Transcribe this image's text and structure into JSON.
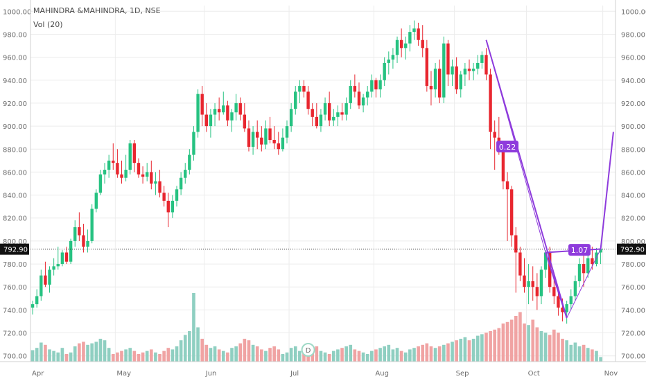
{
  "legend": {
    "title": "MAHINDRA &MAHINDRA, 1D, NSE",
    "volume_label": "Vol (20)"
  },
  "colors": {
    "up": "#26c281",
    "up_dark": "#1ea86c",
    "down": "#e8262f",
    "volume_up": "#8fcfc1",
    "volume_down": "#f0a3a3",
    "pattern": "#8e3bdc",
    "price_tag_bg": "#111111",
    "grid_line": "#ececec",
    "axis_text": "#6b6b6b"
  },
  "chart_data": {
    "type": "candlestick",
    "title": "MAHINDRA &MAHINDRA, 1D, NSE",
    "indicator": "Vol (20)",
    "y_axis": {
      "range": [
        695,
        1005
      ],
      "ticks": [
        "700.00",
        "720.00",
        "740.00",
        "760.00",
        "780.00",
        "800.00",
        "820.00",
        "840.00",
        "860.00",
        "880.00",
        "900.00",
        "920.00",
        "940.00",
        "960.00",
        "980.00",
        "1000.00"
      ],
      "visible_left": true,
      "visible_right": true
    },
    "x_axis": {
      "labels": [
        {
          "label": "Apr",
          "day": 0
        },
        {
          "label": "May",
          "day": 20
        },
        {
          "label": "Jun",
          "day": 41
        },
        {
          "label": "Jul",
          "day": 61
        },
        {
          "label": "Aug",
          "day": 81
        },
        {
          "label": "Sep",
          "day": 100
        },
        {
          "label": "Oct",
          "day": 117
        },
        {
          "label": "Nov",
          "day": 135
        }
      ],
      "total_days": 138
    },
    "last_price": {
      "value": 792.9,
      "label": "792.90"
    },
    "candles": [
      [
        0,
        742,
        748,
        736,
        745
      ],
      [
        1,
        745,
        758,
        742,
        752
      ],
      [
        2,
        752,
        775,
        748,
        770
      ],
      [
        3,
        770,
        782,
        760,
        762
      ],
      [
        4,
        762,
        778,
        755,
        775
      ],
      [
        5,
        775,
        785,
        770,
        778
      ],
      [
        6,
        778,
        795,
        775,
        780
      ],
      [
        7,
        780,
        792,
        778,
        790
      ],
      [
        8,
        790,
        795,
        780,
        782
      ],
      [
        9,
        782,
        802,
        780,
        800
      ],
      [
        10,
        800,
        818,
        795,
        812
      ],
      [
        11,
        812,
        825,
        800,
        805
      ],
      [
        12,
        805,
        815,
        790,
        795
      ],
      [
        13,
        795,
        810,
        790,
        800
      ],
      [
        14,
        800,
        832,
        798,
        828
      ],
      [
        15,
        828,
        845,
        825,
        842
      ],
      [
        16,
        842,
        862,
        840,
        858
      ],
      [
        17,
        858,
        868,
        850,
        862
      ],
      [
        18,
        862,
        875,
        855,
        870
      ],
      [
        19,
        870,
        885,
        862,
        868
      ],
      [
        20,
        868,
        880,
        855,
        858
      ],
      [
        21,
        858,
        870,
        850,
        855
      ],
      [
        22,
        855,
        875,
        852,
        862
      ],
      [
        23,
        862,
        888,
        858,
        885
      ],
      [
        24,
        885,
        888,
        860,
        868
      ],
      [
        25,
        868,
        872,
        855,
        858
      ],
      [
        26,
        858,
        865,
        850,
        856
      ],
      [
        27,
        856,
        868,
        852,
        860
      ],
      [
        28,
        860,
        870,
        845,
        850
      ],
      [
        29,
        850,
        860,
        840,
        852
      ],
      [
        30,
        852,
        862,
        838,
        842
      ],
      [
        31,
        842,
        848,
        830,
        835
      ],
      [
        32,
        835,
        842,
        812,
        825
      ],
      [
        33,
        825,
        840,
        820,
        835
      ],
      [
        34,
        835,
        848,
        830,
        845
      ],
      [
        35,
        845,
        860,
        840,
        855
      ],
      [
        36,
        855,
        868,
        850,
        862
      ],
      [
        37,
        862,
        880,
        858,
        875
      ],
      [
        38,
        875,
        900,
        870,
        895
      ],
      [
        39,
        895,
        932,
        890,
        928
      ],
      [
        40,
        928,
        935,
        900,
        910
      ],
      [
        41,
        910,
        920,
        895,
        900
      ],
      [
        42,
        900,
        915,
        890,
        910
      ],
      [
        43,
        910,
        920,
        900,
        915
      ],
      [
        44,
        915,
        925,
        905,
        912
      ],
      [
        45,
        912,
        930,
        910,
        918
      ],
      [
        46,
        918,
        922,
        900,
        905
      ],
      [
        47,
        905,
        915,
        895,
        912
      ],
      [
        48,
        912,
        928,
        905,
        920
      ],
      [
        49,
        920,
        925,
        905,
        910
      ],
      [
        50,
        910,
        920,
        895,
        898
      ],
      [
        51,
        898,
        905,
        878,
        882
      ],
      [
        52,
        882,
        900,
        875,
        895
      ],
      [
        53,
        895,
        905,
        880,
        890
      ],
      [
        54,
        890,
        900,
        878,
        884
      ],
      [
        55,
        884,
        905,
        880,
        898
      ],
      [
        56,
        898,
        908,
        885,
        888
      ],
      [
        57,
        888,
        900,
        880,
        885
      ],
      [
        58,
        885,
        895,
        875,
        880
      ],
      [
        59,
        880,
        898,
        878,
        890
      ],
      [
        60,
        890,
        905,
        885,
        900
      ],
      [
        61,
        900,
        920,
        895,
        915
      ],
      [
        62,
        915,
        935,
        910,
        930
      ],
      [
        63,
        930,
        940,
        920,
        935
      ],
      [
        64,
        935,
        940,
        925,
        930
      ],
      [
        65,
        930,
        935,
        910,
        915
      ],
      [
        66,
        915,
        920,
        900,
        908
      ],
      [
        67,
        908,
        920,
        898,
        900
      ],
      [
        68,
        900,
        915,
        895,
        910
      ],
      [
        69,
        910,
        925,
        905,
        920
      ],
      [
        70,
        920,
        930,
        900,
        905
      ],
      [
        71,
        905,
        915,
        900,
        908
      ],
      [
        72,
        908,
        918,
        900,
        912
      ],
      [
        73,
        912,
        920,
        905,
        910
      ],
      [
        74,
        910,
        925,
        905,
        920
      ],
      [
        75,
        920,
        940,
        915,
        935
      ],
      [
        76,
        935,
        945,
        925,
        930
      ],
      [
        77,
        930,
        938,
        915,
        918
      ],
      [
        78,
        918,
        928,
        912,
        925
      ],
      [
        79,
        925,
        935,
        918,
        930
      ],
      [
        80,
        930,
        945,
        925,
        940
      ],
      [
        81,
        940,
        942,
        925,
        932
      ],
      [
        82,
        932,
        945,
        925,
        940
      ],
      [
        83,
        940,
        960,
        935,
        955
      ],
      [
        84,
        955,
        965,
        945,
        958
      ],
      [
        85,
        958,
        968,
        950,
        962
      ],
      [
        86,
        962,
        978,
        955,
        975
      ],
      [
        87,
        975,
        985,
        960,
        968
      ],
      [
        88,
        968,
        978,
        958,
        972
      ],
      [
        89,
        972,
        988,
        965,
        982
      ],
      [
        90,
        982,
        992,
        975,
        985
      ],
      [
        91,
        985,
        990,
        970,
        975
      ],
      [
        92,
        975,
        988,
        960,
        968
      ],
      [
        93,
        968,
        975,
        930,
        935
      ],
      [
        94,
        935,
        948,
        918,
        932
      ],
      [
        95,
        932,
        955,
        925,
        950
      ],
      [
        96,
        950,
        958,
        920,
        925
      ],
      [
        97,
        925,
        978,
        920,
        972
      ],
      [
        98,
        972,
        975,
        935,
        945
      ],
      [
        99,
        945,
        958,
        935,
        952
      ],
      [
        100,
        952,
        960,
        928,
        932
      ],
      [
        101,
        932,
        948,
        925,
        945
      ],
      [
        102,
        945,
        955,
        935,
        950
      ],
      [
        103,
        950,
        958,
        940,
        948
      ],
      [
        104,
        948,
        955,
        940,
        950
      ],
      [
        105,
        950,
        962,
        945,
        955
      ],
      [
        106,
        955,
        965,
        950,
        962
      ],
      [
        107,
        962,
        968,
        940,
        945
      ],
      [
        108,
        945,
        950,
        880,
        895
      ],
      [
        109,
        895,
        905,
        862,
        890
      ],
      [
        110,
        890,
        908,
        875,
        880
      ],
      [
        111,
        880,
        885,
        845,
        852
      ],
      [
        112,
        852,
        860,
        800,
        845
      ],
      [
        113,
        845,
        848,
        795,
        805
      ],
      [
        114,
        805,
        812,
        755,
        790
      ],
      [
        115,
        790,
        795,
        765,
        770
      ],
      [
        116,
        770,
        785,
        755,
        760
      ],
      [
        117,
        760,
        780,
        745,
        765
      ],
      [
        118,
        765,
        778,
        748,
        760
      ],
      [
        119,
        760,
        772,
        740,
        752
      ],
      [
        120,
        752,
        778,
        745,
        775
      ],
      [
        121,
        775,
        792,
        768,
        790
      ],
      [
        122,
        790,
        795,
        755,
        760
      ],
      [
        123,
        760,
        772,
        745,
        752
      ],
      [
        124,
        752,
        760,
        735,
        742
      ],
      [
        125,
        742,
        750,
        730,
        738
      ],
      [
        126,
        738,
        748,
        728,
        745
      ],
      [
        127,
        745,
        758,
        740,
        752
      ],
      [
        128,
        752,
        770,
        748,
        765
      ],
      [
        129,
        765,
        785,
        760,
        780
      ],
      [
        130,
        780,
        788,
        760,
        772
      ],
      [
        131,
        772,
        788,
        768,
        785
      ],
      [
        132,
        785,
        795,
        775,
        780
      ],
      [
        133,
        780,
        794,
        778,
        790
      ],
      [
        134,
        790,
        796,
        780,
        793
      ]
    ],
    "volume_max_relative": 1.0,
    "volumes": [
      0.15,
      0.18,
      0.25,
      0.22,
      0.16,
      0.14,
      0.12,
      0.18,
      0.1,
      0.12,
      0.2,
      0.24,
      0.26,
      0.22,
      0.24,
      0.26,
      0.3,
      0.28,
      0.18,
      0.1,
      0.12,
      0.14,
      0.16,
      0.18,
      0.14,
      0.1,
      0.12,
      0.14,
      0.16,
      0.12,
      0.1,
      0.14,
      0.18,
      0.16,
      0.2,
      0.28,
      0.35,
      0.4,
      0.9,
      0.45,
      0.3,
      0.22,
      0.18,
      0.2,
      0.16,
      0.14,
      0.12,
      0.18,
      0.2,
      0.24,
      0.3,
      0.28,
      0.22,
      0.2,
      0.16,
      0.14,
      0.18,
      0.2,
      0.16,
      0.1,
      0.12,
      0.18,
      0.2,
      0.14,
      0.12,
      0.16,
      0.18,
      0.2,
      0.14,
      0.12,
      0.1,
      0.14,
      0.16,
      0.18,
      0.2,
      0.22,
      0.16,
      0.14,
      0.12,
      0.1,
      0.14,
      0.16,
      0.18,
      0.2,
      0.22,
      0.16,
      0.18,
      0.14,
      0.12,
      0.16,
      0.18,
      0.2,
      0.22,
      0.24,
      0.2,
      0.18,
      0.2,
      0.22,
      0.24,
      0.26,
      0.28,
      0.3,
      0.32,
      0.28,
      0.3,
      0.34,
      0.36,
      0.38,
      0.4,
      0.42,
      0.44,
      0.5,
      0.52,
      0.55,
      0.6,
      0.65,
      0.5,
      0.48,
      0.55,
      0.45,
      0.4,
      0.38,
      0.35,
      0.42,
      0.38,
      0.3,
      0.28,
      0.22,
      0.25,
      0.2,
      0.22,
      0.18,
      0.16,
      0.14,
      0.06
    ],
    "pattern": {
      "points": [
        {
          "day": 107,
          "price": 975
        },
        {
          "day": 126,
          "price": 733
        },
        {
          "day": 121,
          "price": 790
        },
        {
          "day": 134,
          "price": 793
        },
        {
          "day": 137,
          "price": 895
        }
      ],
      "labels": [
        {
          "text": "0.22",
          "day": 112,
          "price": 882
        },
        {
          "text": "1.07",
          "day": 129,
          "price": 792
        }
      ]
    },
    "extra_marker": {
      "text": "D",
      "day": 65
    }
  }
}
